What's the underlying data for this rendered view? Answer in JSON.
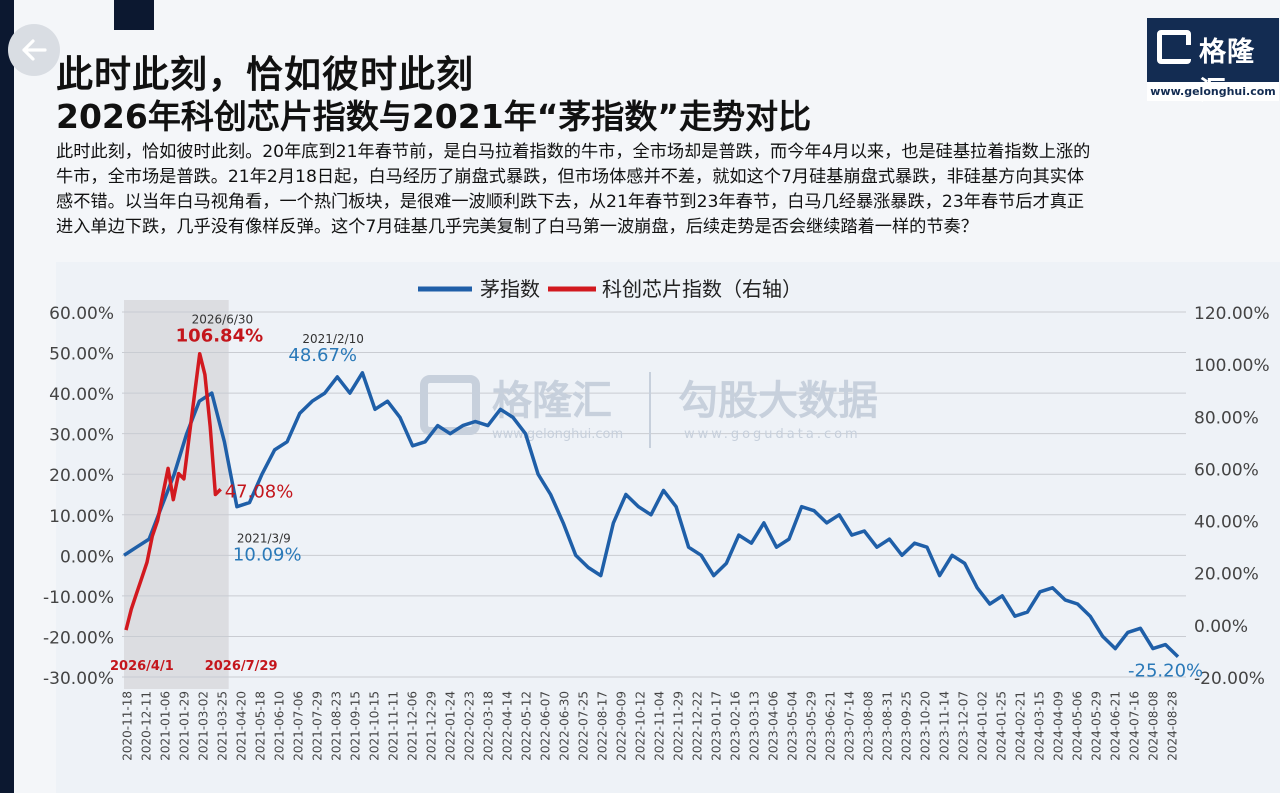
{
  "header": {
    "title": "此时此刻，恰如彼时此刻",
    "subtitle": "2026年科创芯片指数与2021年“茅指数”走势对比",
    "paragraph_lines": [
      "此时此刻，恰如彼时此刻。20年底到21年春节前，是白马拉着指数的牛市，全市场却是普跌，而今年4月以来，也是硅基拉着指数上涨的",
      "牛市，全市场是普跌。21年2月18日起，白马经历了崩盘式暴跌，但市场体感并不差，就如这个7月硅基崩盘式暴跌，非硅基方向其实体",
      "感不错。以当年白马视角看，一个热门板块，是很难一波顺利跌下去，从21年春节到23年春节，白马几经暴涨暴跌，23年春节后才真正",
      "进入单边下跌，几乎没有像样反弹。这个7月硅基几乎完美复制了白马第一波崩盘，后续走势是否会继续踏着一样的节奏？"
    ]
  },
  "logo": {
    "name": "格隆汇",
    "url": "www.gelonghui.com"
  },
  "watermark": {
    "brand": "格隆汇",
    "brand_url": "www.gelonghui.com",
    "partner": "勾股大数据",
    "partner_url": "www.gogudata.com"
  },
  "icons": {
    "back": "arrow-left-icon",
    "logo": "gelonghui-logo-icon"
  },
  "colors": {
    "blue": "#1f5fa8",
    "red": "#d2191f",
    "highlight": "#d8d9dd",
    "blue_label": "#2a79b8",
    "red_label": "#c4161c"
  },
  "chart_data": {
    "type": "line",
    "legend": {
      "position": "top-center",
      "items": [
        {
          "name": "茅指数",
          "color": "#1f5fa8"
        },
        {
          "name": "科创芯片指数（右轴）",
          "color": "#d2191f"
        }
      ]
    },
    "y_left": {
      "ticks": [
        "60.00%",
        "50.00%",
        "40.00%",
        "30.00%",
        "20.00%",
        "10.00%",
        "0.00%",
        "-10.00%",
        "-20.00%",
        "-30.00%"
      ],
      "range": [
        -30,
        60
      ]
    },
    "y_right": {
      "ticks": [
        "120.00%",
        "100.00%",
        "80.00%",
        "60.00%",
        "40.00%",
        "20.00%",
        "0.00%",
        "-20.00%"
      ],
      "range": [
        -20,
        120
      ]
    },
    "x_labels": [
      "2020-11-18",
      "2020-12-11",
      "2021-01-06",
      "2021-01-29",
      "2021-03-02",
      "2021-03-25",
      "2021-04-20",
      "2021-05-18",
      "2021-06-10",
      "2021-07-06",
      "2021-07-29",
      "2021-08-23",
      "2021-09-15",
      "2021-10-15",
      "2021-11-11",
      "2021-12-06",
      "2021-12-29",
      "2022-01-24",
      "2022-02-23",
      "2022-03-18",
      "2022-04-14",
      "2022-05-12",
      "2022-06-07",
      "2022-06-30",
      "2022-07-25",
      "2022-08-17",
      "2022-09-09",
      "2022-10-12",
      "2022-11-04",
      "2022-11-29",
      "2022-12-22",
      "2023-01-17",
      "2023-02-16",
      "2023-03-13",
      "2023-04-06",
      "2023-05-04",
      "2023-05-29",
      "2023-06-21",
      "2023-07-14",
      "2023-08-08",
      "2023-08-31",
      "2023-09-25",
      "2023-10-20",
      "2023-11-14",
      "2023-12-07",
      "2024-01-02",
      "2024-01-25",
      "2024-02-21",
      "2024-03-15",
      "2024-04-09",
      "2024-05-06",
      "2024-05-29",
      "2024-06-21",
      "2024-07-16",
      "2024-08-08",
      "2024-08-28"
    ],
    "maozhi_series": {
      "name": "茅指数",
      "axis": "left",
      "values": [
        0,
        2,
        4,
        12,
        20,
        30,
        38,
        40,
        28,
        12,
        13,
        20,
        26,
        28,
        35,
        38,
        40,
        44,
        40,
        45,
        36,
        38,
        34,
        27,
        28,
        32,
        30,
        32,
        33,
        32,
        36,
        34,
        30,
        20,
        15,
        8,
        0,
        -3,
        -5,
        8,
        15,
        12,
        10,
        16,
        12,
        2,
        0,
        -5,
        -2,
        5,
        3,
        8,
        2,
        4,
        12,
        11,
        8,
        10,
        5,
        6,
        2,
        4,
        0,
        3,
        2,
        -5,
        0,
        -2,
        -8,
        -12,
        -10,
        -15,
        -14,
        -9,
        -8,
        -11,
        -12,
        -15,
        -20,
        -23,
        -19,
        -18,
        -23,
        -22,
        -25
      ]
    },
    "xinpian_series": {
      "name": "科创芯片指数（右轴）",
      "axis": "right",
      "values": [
        -2,
        6,
        12,
        18,
        24,
        34,
        40,
        50,
        60,
        48,
        58,
        56,
        72,
        88,
        104,
        96,
        76,
        50,
        52
      ]
    },
    "annotations": [
      {
        "date": "2021/2/10",
        "value": "48.67%",
        "series": "茅指数"
      },
      {
        "date": "2021/3/9",
        "value": "10.09%",
        "series": "茅指数"
      },
      {
        "date": "2026/6/30",
        "value": "106.84%",
        "series": "科创芯片指数（右轴）"
      },
      {
        "date": "",
        "value": "47.08%",
        "series": "科创芯片指数（右轴）"
      },
      {
        "date": "",
        "value": "-25.20%",
        "series": "茅指数"
      }
    ],
    "highlight_start_label": "2026/4/1",
    "highlight_end_label": "2026/7/29",
    "grid": true
  }
}
